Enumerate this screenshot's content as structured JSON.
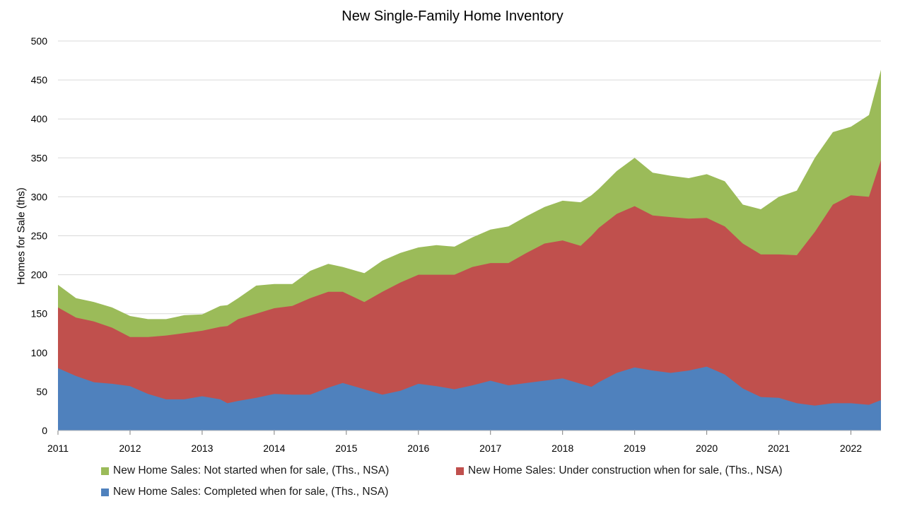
{
  "chart_data": {
    "type": "area",
    "stacked": true,
    "title": "New Single-Family Home Inventory",
    "xlabel": "",
    "ylabel": "Homes for Sale (ths)",
    "ylim": [
      0,
      500
    ],
    "yticks": [
      0,
      50,
      100,
      150,
      200,
      250,
      300,
      350,
      400,
      450,
      500
    ],
    "xticks": [
      "2011",
      "2012",
      "2013",
      "2014",
      "2015",
      "2016",
      "2017",
      "2018",
      "2019",
      "2020",
      "2021",
      "2022"
    ],
    "xlim": [
      2011.0,
      2022.4167
    ],
    "grid": "horizontal",
    "legend_position": "bottom",
    "series": [
      {
        "name": "New Home Sales: Completed when for sale, (Ths., NSA)",
        "color": "#4F81BD",
        "points": [
          [
            2011.0,
            80
          ],
          [
            2011.25,
            70
          ],
          [
            2011.5,
            62
          ],
          [
            2011.75,
            60
          ],
          [
            2012.0,
            57
          ],
          [
            2012.25,
            47
          ],
          [
            2012.5,
            40
          ],
          [
            2012.75,
            40
          ],
          [
            2013.0,
            44
          ],
          [
            2013.25,
            40
          ],
          [
            2013.35,
            35
          ],
          [
            2013.5,
            38
          ],
          [
            2013.75,
            42
          ],
          [
            2014.0,
            47
          ],
          [
            2014.25,
            46
          ],
          [
            2014.5,
            46
          ],
          [
            2014.75,
            55
          ],
          [
            2014.95,
            61
          ],
          [
            2015.25,
            53
          ],
          [
            2015.5,
            46
          ],
          [
            2015.75,
            51
          ],
          [
            2016.0,
            60
          ],
          [
            2016.25,
            57
          ],
          [
            2016.5,
            53
          ],
          [
            2016.75,
            58
          ],
          [
            2017.0,
            64
          ],
          [
            2017.25,
            58
          ],
          [
            2017.5,
            61
          ],
          [
            2017.75,
            64
          ],
          [
            2018.0,
            67
          ],
          [
            2018.25,
            60
          ],
          [
            2018.4,
            56
          ],
          [
            2018.5,
            62
          ],
          [
            2018.75,
            74
          ],
          [
            2019.0,
            81
          ],
          [
            2019.25,
            77
          ],
          [
            2019.5,
            74
          ],
          [
            2019.75,
            77
          ],
          [
            2020.0,
            82
          ],
          [
            2020.25,
            72
          ],
          [
            2020.5,
            54
          ],
          [
            2020.75,
            43
          ],
          [
            2021.0,
            42
          ],
          [
            2021.25,
            35
          ],
          [
            2021.5,
            32
          ],
          [
            2021.75,
            35
          ],
          [
            2022.0,
            35
          ],
          [
            2022.25,
            33
          ],
          [
            2022.4167,
            39
          ]
        ]
      },
      {
        "name": "New Home Sales: Under construction when for sale, (Ths., NSA)",
        "color": "#C0504D",
        "points": [
          [
            2011.0,
            158
          ],
          [
            2011.25,
            145
          ],
          [
            2011.5,
            140
          ],
          [
            2011.75,
            132
          ],
          [
            2012.0,
            120
          ],
          [
            2012.25,
            120
          ],
          [
            2012.5,
            122
          ],
          [
            2012.75,
            125
          ],
          [
            2013.0,
            128
          ],
          [
            2013.25,
            133
          ],
          [
            2013.35,
            134
          ],
          [
            2013.5,
            143
          ],
          [
            2013.75,
            150
          ],
          [
            2014.0,
            157
          ],
          [
            2014.25,
            160
          ],
          [
            2014.5,
            170
          ],
          [
            2014.75,
            178
          ],
          [
            2014.95,
            178
          ],
          [
            2015.25,
            165
          ],
          [
            2015.5,
            178
          ],
          [
            2015.75,
            190
          ],
          [
            2016.0,
            200
          ],
          [
            2016.25,
            200
          ],
          [
            2016.5,
            200
          ],
          [
            2016.75,
            210
          ],
          [
            2017.0,
            215
          ],
          [
            2017.25,
            215
          ],
          [
            2017.5,
            228
          ],
          [
            2017.75,
            240
          ],
          [
            2018.0,
            244
          ],
          [
            2018.25,
            237
          ],
          [
            2018.4,
            250
          ],
          [
            2018.5,
            260
          ],
          [
            2018.75,
            278
          ],
          [
            2019.0,
            288
          ],
          [
            2019.25,
            276
          ],
          [
            2019.5,
            274
          ],
          [
            2019.75,
            272
          ],
          [
            2020.0,
            273
          ],
          [
            2020.25,
            262
          ],
          [
            2020.5,
            240
          ],
          [
            2020.75,
            226
          ],
          [
            2021.0,
            226
          ],
          [
            2021.25,
            225
          ],
          [
            2021.5,
            255
          ],
          [
            2021.75,
            290
          ],
          [
            2022.0,
            302
          ],
          [
            2022.25,
            300
          ],
          [
            2022.4167,
            347
          ]
        ]
      },
      {
        "name": "New Home Sales: Not started when for sale, (Ths., NSA)",
        "color": "#9BBB59",
        "points": [
          [
            2011.0,
            187
          ],
          [
            2011.25,
            170
          ],
          [
            2011.5,
            165
          ],
          [
            2011.75,
            158
          ],
          [
            2012.0,
            147
          ],
          [
            2012.25,
            143
          ],
          [
            2012.5,
            143
          ],
          [
            2012.75,
            148
          ],
          [
            2013.0,
            149
          ],
          [
            2013.25,
            160
          ],
          [
            2013.35,
            161
          ],
          [
            2013.5,
            170
          ],
          [
            2013.75,
            186
          ],
          [
            2014.0,
            188
          ],
          [
            2014.25,
            188
          ],
          [
            2014.5,
            205
          ],
          [
            2014.75,
            214
          ],
          [
            2014.95,
            210
          ],
          [
            2015.25,
            202
          ],
          [
            2015.5,
            218
          ],
          [
            2015.75,
            228
          ],
          [
            2016.0,
            235
          ],
          [
            2016.25,
            238
          ],
          [
            2016.5,
            236
          ],
          [
            2016.75,
            248
          ],
          [
            2017.0,
            258
          ],
          [
            2017.25,
            262
          ],
          [
            2017.5,
            275
          ],
          [
            2017.75,
            287
          ],
          [
            2018.0,
            295
          ],
          [
            2018.25,
            293
          ],
          [
            2018.4,
            302
          ],
          [
            2018.5,
            310
          ],
          [
            2018.75,
            333
          ],
          [
            2019.0,
            350
          ],
          [
            2019.25,
            331
          ],
          [
            2019.5,
            327
          ],
          [
            2019.75,
            324
          ],
          [
            2020.0,
            329
          ],
          [
            2020.25,
            320
          ],
          [
            2020.5,
            290
          ],
          [
            2020.75,
            284
          ],
          [
            2021.0,
            300
          ],
          [
            2021.25,
            308
          ],
          [
            2021.5,
            350
          ],
          [
            2021.75,
            383
          ],
          [
            2022.0,
            390
          ],
          [
            2022.25,
            405
          ],
          [
            2022.4167,
            463
          ]
        ]
      }
    ]
  }
}
